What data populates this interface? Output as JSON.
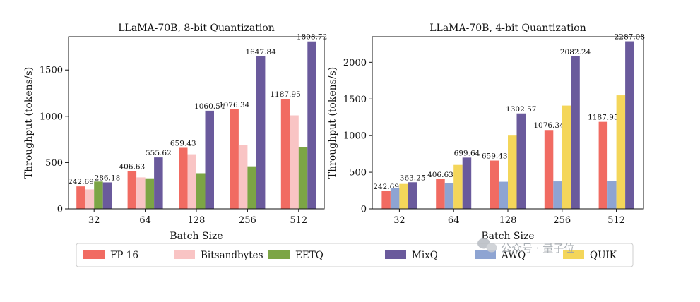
{
  "watermark": {
    "text": "公众号 · 量子位",
    "icon": "wechat-icon"
  },
  "legend": {
    "entries": [
      {
        "id": "fp16",
        "label": "FP 16",
        "color": "#f16b62"
      },
      {
        "id": "bnb",
        "label": "Bitsandbytes",
        "color": "#f9c4c4"
      },
      {
        "id": "eetq",
        "label": "EETQ",
        "color": "#7ca545"
      },
      {
        "id": "mixq",
        "label": "MixQ",
        "color": "#6a5a9c"
      },
      {
        "id": "awq",
        "label": "AWQ",
        "color": "#8ea4d2"
      },
      {
        "id": "quik",
        "label": "QUIK",
        "color": "#f4d65a"
      }
    ]
  },
  "chart_data": [
    {
      "type": "bar",
      "title": "LLaMA-70B, 8-bit Quantization",
      "xlabel": "Batch Size",
      "ylabel": "Throughput (tokens/s)",
      "categories": [
        "32",
        "64",
        "128",
        "256",
        "512"
      ],
      "ylim": [
        0,
        1860
      ],
      "yticks": [
        0,
        500,
        1000,
        1500
      ],
      "series": [
        {
          "id": "fp16",
          "name": "FP 16",
          "values": [
            242.69,
            406.63,
            659.43,
            1076.34,
            1187.95
          ],
          "labels": [
            "242.69",
            "406.63",
            "659.43",
            "1076.34",
            "1187.95"
          ]
        },
        {
          "id": "bnb",
          "name": "Bitsandbytes",
          "values": [
            210,
            340,
            590,
            690,
            1010
          ]
        },
        {
          "id": "eetq",
          "name": "EETQ",
          "values": [
            295,
            330,
            385,
            460,
            670
          ]
        },
        {
          "id": "mixq",
          "name": "MixQ",
          "values": [
            286.18,
            555.62,
            1060.54,
            1647.84,
            1808.72
          ],
          "labels": [
            "286.18",
            "555.62",
            "1060.54",
            "1647.84",
            "1808.72"
          ]
        }
      ]
    },
    {
      "type": "bar",
      "title": "LLaMA-70B, 4-bit Quantization",
      "xlabel": "Batch Size",
      "ylabel": "Throughput (tokens/s)",
      "categories": [
        "32",
        "64",
        "128",
        "256",
        "512"
      ],
      "ylim": [
        0,
        2350
      ],
      "yticks": [
        0,
        500,
        1000,
        1500,
        2000
      ],
      "series": [
        {
          "id": "fp16",
          "name": "FP 16",
          "values": [
            242.69,
            406.63,
            659.43,
            1076.34,
            1187.95
          ],
          "labels": [
            "242.69",
            "406.63",
            "659.43",
            "1076.34",
            "1187.95"
          ]
        },
        {
          "id": "awq",
          "name": "AWQ",
          "values": [
            280,
            350,
            370,
            375,
            380
          ]
        },
        {
          "id": "quik",
          "name": "QUIK",
          "values": [
            340,
            600,
            1000,
            1410,
            1550
          ]
        },
        {
          "id": "mixq",
          "name": "MixQ",
          "values": [
            363.25,
            699.64,
            1302.57,
            2082.24,
            2287.08
          ],
          "labels": [
            "363.25",
            "699.64",
            "1302.57",
            "2082.24",
            "2287.08"
          ]
        }
      ]
    }
  ]
}
